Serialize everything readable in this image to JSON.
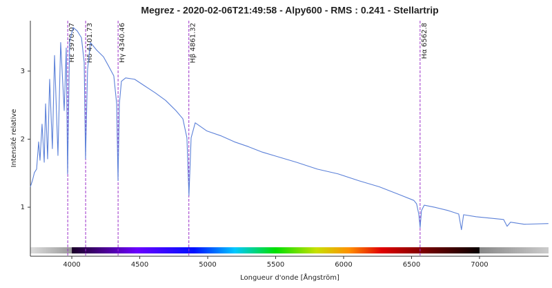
{
  "chart_data": {
    "type": "line",
    "title": "Megrez - 2020-02-06T21:49:58 - Alpy600 - RMS : 0.241 - Stellartrip",
    "x_label": "Longueur d'onde [Ångström]",
    "y_label": "Intensité relative",
    "x": [
      3695,
      3710,
      3725,
      3741,
      3756,
      3766,
      3781,
      3797,
      3807,
      3822,
      3837,
      3857,
      3873,
      3898,
      3918,
      3944,
      3959,
      3969,
      3984,
      4010,
      4040,
      4071,
      4091,
      4101,
      4116,
      4137,
      4182,
      4233,
      4269,
      4309,
      4330,
      4340,
      4350,
      4365,
      4396,
      4462,
      4538,
      4614,
      4690,
      4766,
      4817,
      4847,
      4862,
      4878,
      4908,
      4994,
      5096,
      5197,
      5299,
      5401,
      5502,
      5654,
      5807,
      5959,
      6111,
      6263,
      6416,
      6517,
      6537,
      6553,
      6563,
      6573,
      6593,
      6669,
      6771,
      6847,
      6867,
      6883,
      6974,
      7076,
      7177,
      7203,
      7228,
      7329,
      7507
    ],
    "series": [
      {
        "name": "Megrez",
        "color": "#5b80d8",
        "values": [
          1.3,
          1.39,
          1.51,
          1.56,
          1.96,
          1.69,
          2.22,
          1.66,
          2.52,
          1.71,
          2.88,
          1.86,
          3.23,
          1.76,
          3.42,
          2.42,
          3.34,
          1.49,
          3.44,
          3.64,
          3.59,
          3.49,
          3.13,
          1.71,
          3.03,
          3.42,
          3.31,
          3.21,
          3.08,
          2.93,
          2.52,
          1.39,
          2.52,
          2.85,
          2.9,
          2.88,
          2.78,
          2.68,
          2.57,
          2.42,
          2.3,
          2.02,
          1.17,
          2.02,
          2.24,
          2.12,
          2.05,
          1.96,
          1.89,
          1.81,
          1.75,
          1.66,
          1.56,
          1.49,
          1.39,
          1.3,
          1.18,
          1.1,
          1.05,
          0.9,
          0.7,
          0.95,
          1.03,
          1.0,
          0.95,
          0.9,
          0.67,
          0.89,
          0.86,
          0.84,
          0.82,
          0.72,
          0.78,
          0.75,
          0.76
        ]
      }
    ],
    "lines": [
      {
        "name": "Hε",
        "x": 3970.07
      },
      {
        "name": "Hδ",
        "x": 4101.73
      },
      {
        "name": "Hγ",
        "x": 4340.46
      },
      {
        "name": "Hβ",
        "x": 4861.32
      },
      {
        "name": "Hα",
        "x": 6562.8
      }
    ],
    "line_color": "#9b30c9",
    "xlim": [
      3695,
      7508
    ],
    "ylim": [
      0.28,
      3.74
    ],
    "xticks": [
      4000,
      4500,
      5000,
      5500,
      6000,
      6500,
      7000
    ],
    "yticks": [
      1,
      2,
      3
    ],
    "grid": false
  }
}
